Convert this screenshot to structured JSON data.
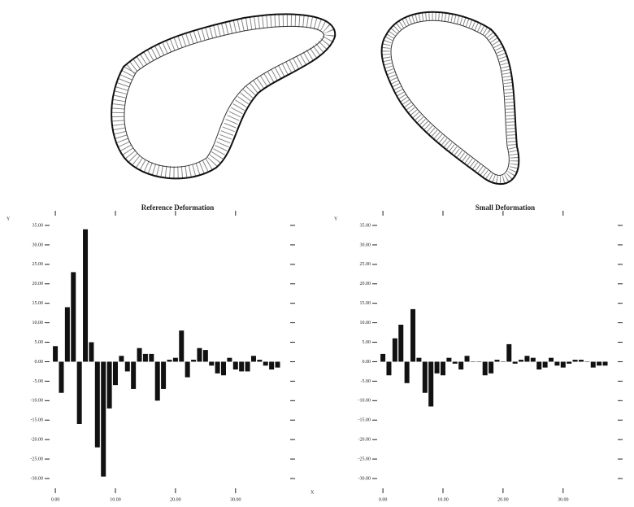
{
  "chart_data": [
    {
      "type": "bar",
      "title": "Reference Deformation",
      "y_label": "Y",
      "x_label": "X",
      "color": "#111111",
      "x": [
        0,
        1,
        2,
        3,
        4,
        5,
        6,
        7,
        8,
        9,
        10,
        11,
        12,
        13,
        14,
        15,
        16,
        17,
        18,
        19,
        20,
        21,
        22,
        23,
        24,
        25,
        26,
        27,
        28,
        29,
        30,
        31,
        32,
        33,
        34,
        35,
        36,
        37
      ],
      "values": [
        4,
        -8,
        14,
        23,
        -16,
        34,
        5,
        -22,
        -29.5,
        -12,
        -6,
        1.5,
        -2.5,
        -7,
        3.5,
        2,
        2,
        -10,
        -7,
        0.5,
        1,
        8,
        -4,
        0.5,
        3.5,
        3,
        -1,
        -3,
        -3.5,
        1,
        -2,
        -2.5,
        -2.5,
        1.5,
        0.5,
        -1,
        -2,
        -1.5
      ],
      "xlim": [
        -1.5,
        39.5
      ],
      "ylim": [
        -30,
        35
      ],
      "xticks": [
        {
          "value": 0,
          "label": "0.00"
        },
        {
          "value": 10,
          "label": "10.00"
        },
        {
          "value": 20,
          "label": "20.00"
        },
        {
          "value": 30,
          "label": "30.00"
        }
      ],
      "yticks": [
        {
          "value": 35,
          "label": "35.00"
        },
        {
          "value": 30,
          "label": "30.00"
        },
        {
          "value": 25,
          "label": "25.00"
        },
        {
          "value": 20,
          "label": "20.00"
        },
        {
          "value": 15,
          "label": "15.00"
        },
        {
          "value": 10,
          "label": "10.00"
        },
        {
          "value": 5,
          "label": "5.00"
        },
        {
          "value": 0,
          "label": "0.00"
        },
        {
          "value": -5,
          "label": "-5.00"
        },
        {
          "value": -10,
          "label": "-10.00"
        },
        {
          "value": -15,
          "label": "-15.00"
        },
        {
          "value": -20,
          "label": "-20.00"
        },
        {
          "value": -25,
          "label": "-25.00"
        },
        {
          "value": -30,
          "label": "-30.00"
        }
      ]
    },
    {
      "type": "bar",
      "title": "Small Deformation",
      "y_label": "Y",
      "color": "#111111",
      "x": [
        0,
        1,
        2,
        3,
        4,
        5,
        6,
        7,
        8,
        9,
        10,
        11,
        12,
        13,
        14,
        15,
        16,
        17,
        18,
        19,
        20,
        21,
        22,
        23,
        24,
        25,
        26,
        27,
        28,
        29,
        30,
        31,
        32,
        33,
        34,
        35,
        36,
        37
      ],
      "values": [
        2,
        -3.5,
        6,
        9.5,
        -5.5,
        13.5,
        1,
        -8,
        -11.5,
        -3,
        -3.5,
        1,
        -0.5,
        -2,
        1.5,
        0,
        0,
        -3.5,
        -3,
        0.5,
        0,
        4.5,
        -0.5,
        0.5,
        1.5,
        1,
        -2,
        -1.5,
        1,
        -1,
        -1.5,
        -0.5,
        0.5,
        0.5,
        0,
        -1.5,
        -1,
        -1
      ],
      "xlim": [
        -1.5,
        39.5
      ],
      "ylim": [
        -30,
        35
      ],
      "xticks": [
        {
          "value": 0,
          "label": "0.00"
        },
        {
          "value": 10,
          "label": "10.00"
        },
        {
          "value": 20,
          "label": "20.00"
        },
        {
          "value": 30,
          "label": "30.00"
        }
      ],
      "yticks": [
        {
          "value": 35,
          "label": "35.00"
        },
        {
          "value": 30,
          "label": "30.00"
        },
        {
          "value": 25,
          "label": "25.00"
        },
        {
          "value": 20,
          "label": "20.00"
        },
        {
          "value": 15,
          "label": "15.00"
        },
        {
          "value": 10,
          "label": "10.00"
        },
        {
          "value": 5,
          "label": "5.00"
        },
        {
          "value": 0,
          "label": "0.00"
        },
        {
          "value": -5,
          "label": "-5.00"
        },
        {
          "value": -10,
          "label": "-10.00"
        },
        {
          "value": -15,
          "label": "-15.00"
        },
        {
          "value": -20,
          "label": "-20.00"
        },
        {
          "value": -25,
          "label": "-25.00"
        },
        {
          "value": -30,
          "label": "-30.00"
        }
      ]
    }
  ]
}
